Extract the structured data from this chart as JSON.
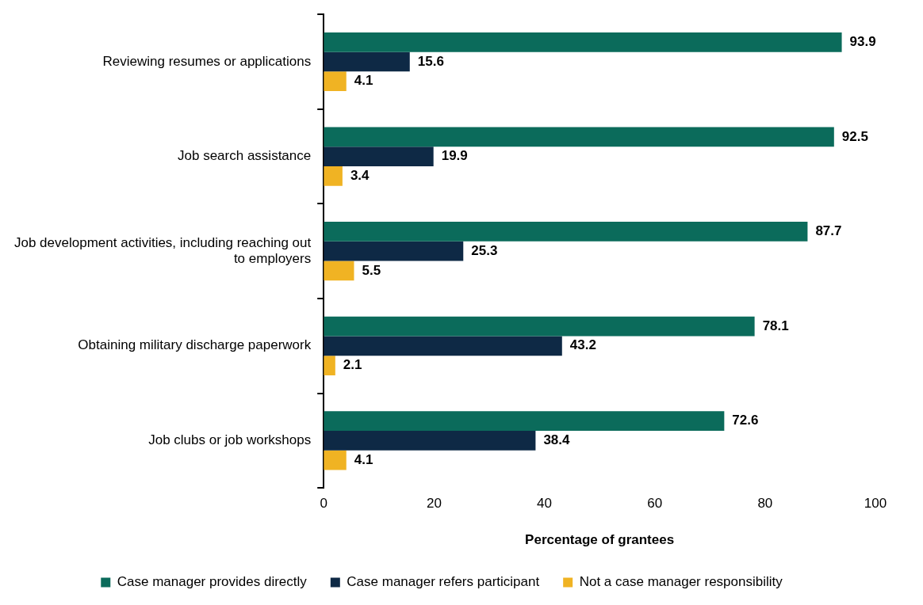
{
  "chart_data": {
    "type": "bar",
    "orientation": "horizontal",
    "xlabel": "Percentage of grantees",
    "categories": [
      "Reviewing resumes or applications",
      "Job search assistance",
      "Job development activities, including reaching out to employers",
      "Obtaining military discharge paperwork",
      "Job clubs or job workshops"
    ],
    "series": [
      {
        "name": "Case manager provides directly",
        "color": "#0b6b5b",
        "values": [
          93.9,
          92.5,
          87.7,
          78.1,
          72.6
        ]
      },
      {
        "name": "Case manager refers participant",
        "color": "#0e2945",
        "values": [
          15.6,
          19.9,
          25.3,
          43.2,
          38.4
        ]
      },
      {
        "name": "Not a case manager responsibility",
        "color": "#f0b323",
        "values": [
          4.1,
          3.4,
          5.5,
          2.1,
          4.1
        ]
      }
    ],
    "xlim": [
      0,
      100
    ],
    "xticks": [
      0,
      20,
      40,
      60,
      80,
      100
    ],
    "grid": false,
    "legend": "bottom",
    "data_labels": true
  }
}
